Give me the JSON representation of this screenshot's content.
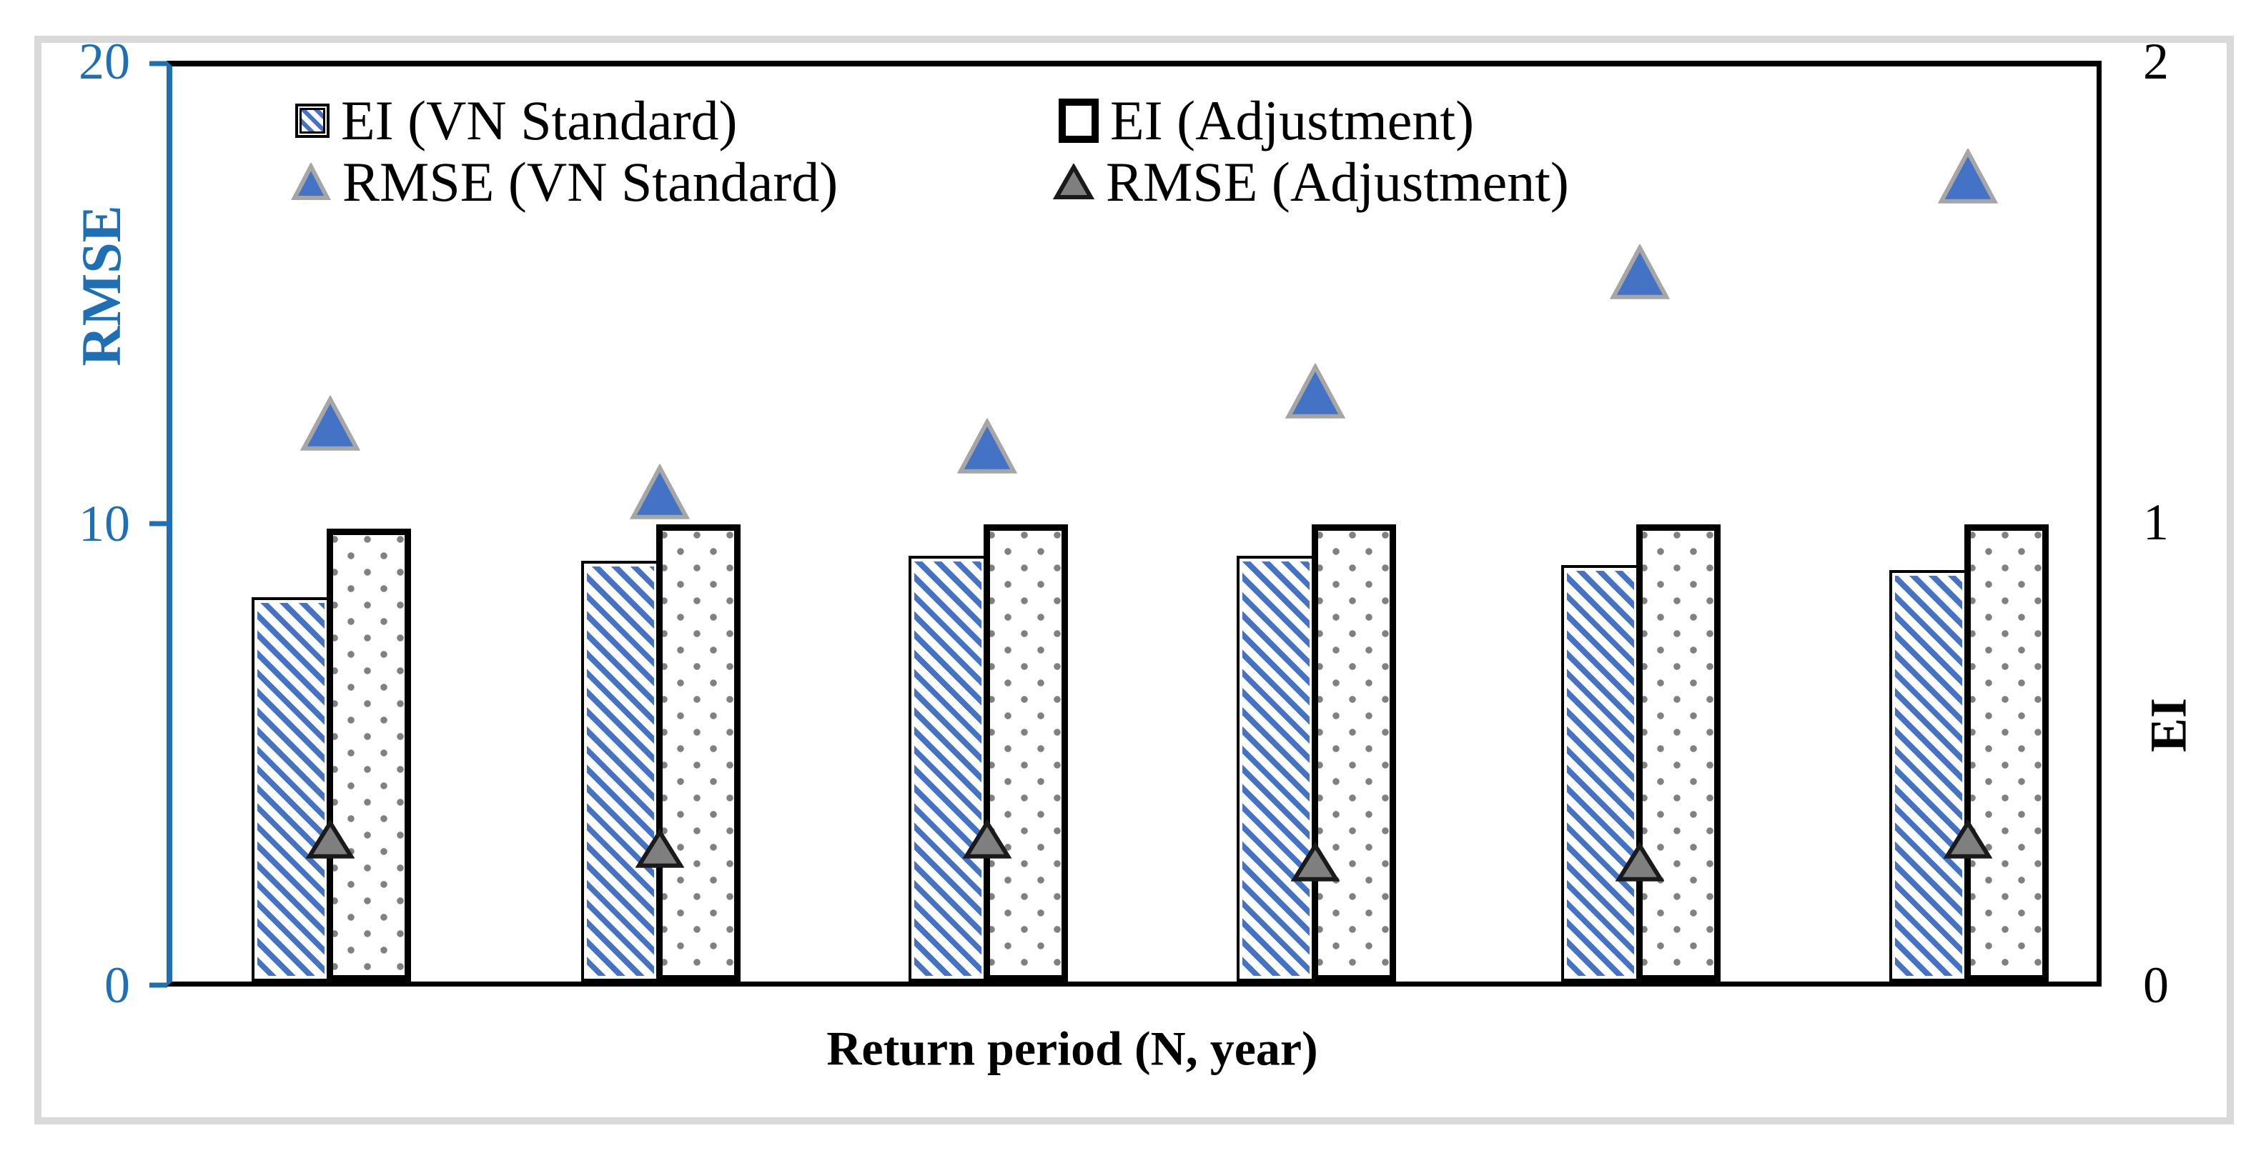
{
  "chart_data": {
    "type": "bar",
    "subtype": "combo-bar-scatter-dual-axis",
    "title": "",
    "categories": [
      "",
      "",
      "",
      "",
      "",
      ""
    ],
    "x_axis": {
      "label": "Return period (N,  year)",
      "tick_labels_visible": false,
      "num_groups": 6
    },
    "left_axis": {
      "label": "RMSE",
      "min": 0,
      "max": 20,
      "ticks": [
        "20",
        "10",
        "0"
      ],
      "color": "#1F6FB5"
    },
    "right_axis": {
      "label": "EI",
      "min": 0,
      "max": 2,
      "ticks": [
        "2",
        "1",
        "0"
      ],
      "color": "#000000"
    },
    "series": [
      {
        "name": "EI (VN Standard)",
        "type": "bar",
        "axis": "right",
        "pattern": "blue-diagonal-hatch",
        "color": "#4472C4",
        "values": [
          0.84,
          0.92,
          0.93,
          0.93,
          0.91,
          0.9
        ]
      },
      {
        "name": "EI (Adjustment)",
        "type": "bar",
        "axis": "right",
        "pattern": "gray-dots-on-white",
        "color": "#808080",
        "values": [
          0.99,
          1.0,
          1.0,
          1.0,
          1.0,
          1.0
        ]
      },
      {
        "name": "RMSE (VN Standard)",
        "type": "scatter",
        "marker": "triangle",
        "axis": "left",
        "fill": "#4472C4",
        "stroke": "#A6A6A6",
        "values": [
          12.2,
          10.7,
          11.7,
          12.9,
          15.5,
          17.6
        ]
      },
      {
        "name": "RMSE (Adjustment)",
        "type": "scatter",
        "marker": "triangle",
        "axis": "left",
        "fill": "#7F7F7F",
        "stroke": "#1A1A1A",
        "values": [
          3.1,
          2.9,
          3.1,
          2.6,
          2.6,
          3.1
        ]
      }
    ],
    "legend": {
      "position": "top-inside",
      "items": [
        "EI (VN Standard)",
        "EI (Adjustment)",
        "RMSE (VN Standard)",
        "RMSE (Adjustment)"
      ]
    },
    "grid": false,
    "frame_color": "#D9D9D9",
    "background": "#FFFFFF"
  }
}
